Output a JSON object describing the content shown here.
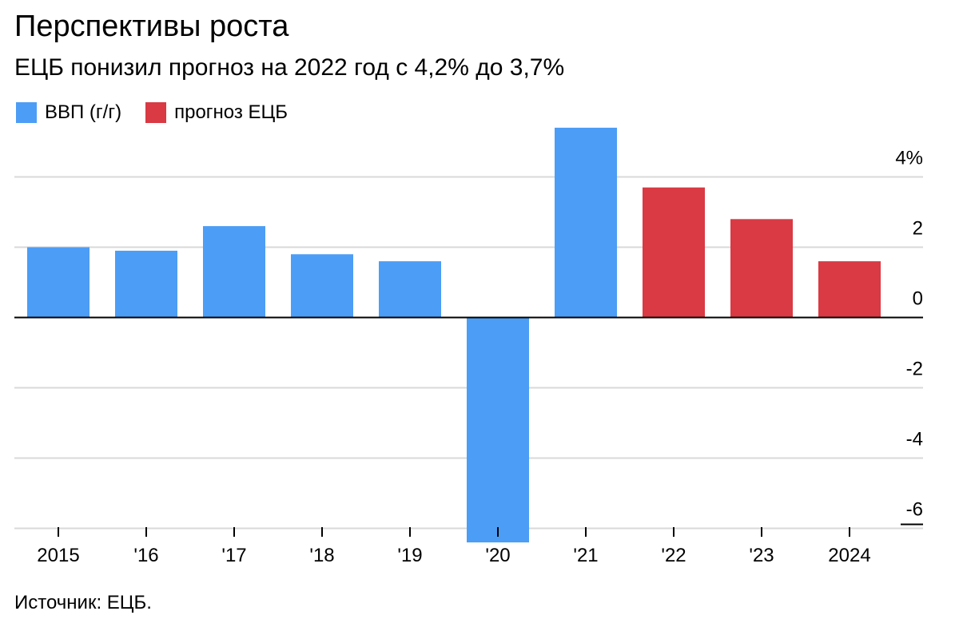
{
  "title": "Перспективы роста",
  "subtitle": "ЕЦБ понизил прогноз на 2022 год с 4,2% до 3,7%",
  "legend": [
    {
      "label": "ВВП (г/г)",
      "color": "#4c9df5"
    },
    {
      "label": "прогноз ЕЦБ",
      "color": "#d93a44"
    }
  ],
  "source": "Источник: ЕЦБ.",
  "chart_data": {
    "type": "bar",
    "categories": [
      "2015",
      "'16",
      "'17",
      "'18",
      "'19",
      "'20",
      "'21",
      "'22",
      "'23",
      "2024"
    ],
    "series": [
      {
        "name": "ВВП (г/г)",
        "color": "#4c9df5",
        "values": [
          2.0,
          1.9,
          2.6,
          1.8,
          1.6,
          -6.4,
          5.4,
          null,
          null,
          null
        ]
      },
      {
        "name": "прогноз ЕЦБ",
        "color": "#d93a44",
        "values": [
          null,
          null,
          null,
          null,
          null,
          null,
          null,
          3.7,
          2.8,
          1.6
        ]
      }
    ],
    "ylim": [
      -6,
      6
    ],
    "yticks": [
      {
        "value": 4,
        "label": "4%"
      },
      {
        "value": 2,
        "label": "2"
      },
      {
        "value": 0,
        "label": "0"
      },
      {
        "value": -2,
        "label": "-2"
      },
      {
        "value": -4,
        "label": "-4"
      },
      {
        "value": -6,
        "label": "-6"
      }
    ],
    "y_axis_position": "right",
    "grid": true,
    "legend_position": "top-left"
  }
}
